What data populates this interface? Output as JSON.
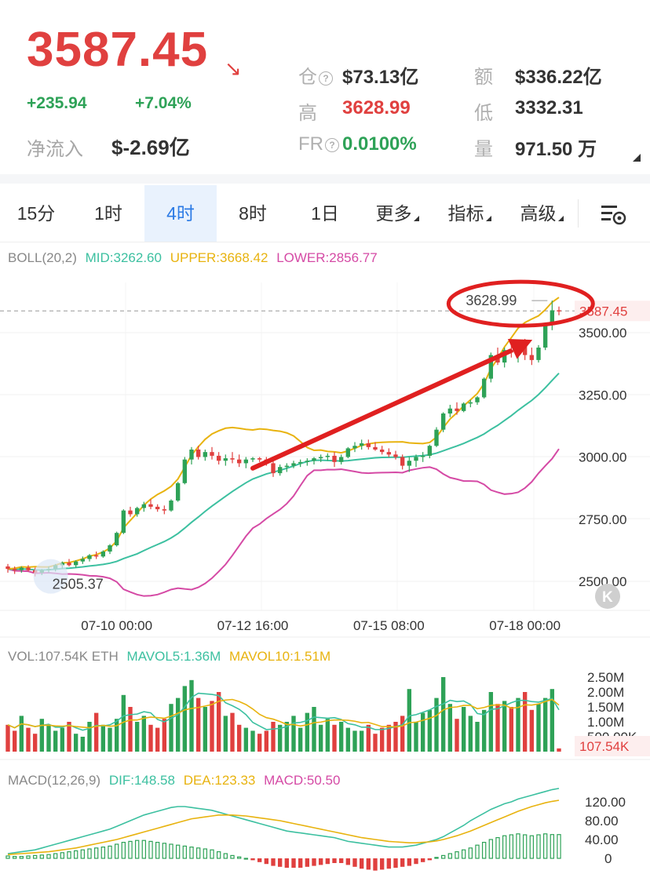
{
  "header": {
    "price": "3587.45",
    "change_abs": "+235.94",
    "change_pct": "+7.04%",
    "netflow_label": "净流入",
    "netflow_value": "$-2.69亿",
    "stats": [
      {
        "label": "仓",
        "value": "$73.13亿",
        "help": true,
        "color": "#333333"
      },
      {
        "label": "额",
        "value": "$336.22亿",
        "help": false,
        "color": "#333333"
      },
      {
        "label": "高",
        "value": "3628.99",
        "help": false,
        "color": "#e0403f"
      },
      {
        "label": "低",
        "value": "3332.31",
        "help": false,
        "color": "#333333"
      },
      {
        "label": "FR",
        "value": "0.0100%",
        "help": true,
        "color": "#2ea257"
      },
      {
        "label": "量",
        "value": "971.50 万",
        "help": false,
        "color": "#333333"
      }
    ]
  },
  "tabs": [
    {
      "label": "15分",
      "active": false,
      "dropdown": false
    },
    {
      "label": "1时",
      "active": false,
      "dropdown": false
    },
    {
      "label": "4时",
      "active": true,
      "dropdown": false
    },
    {
      "label": "8时",
      "active": false,
      "dropdown": false
    },
    {
      "label": "1日",
      "active": false,
      "dropdown": false
    },
    {
      "label": "更多",
      "active": false,
      "dropdown": true
    },
    {
      "label": "指标",
      "active": false,
      "dropdown": true
    },
    {
      "label": "高级",
      "active": false,
      "dropdown": true
    }
  ],
  "tab_settings_icon": "chart-settings-icon",
  "colors": {
    "up": "#2ea257",
    "down": "#e0403f",
    "mid": "#3cc0a0",
    "upper": "#e8b30f",
    "lower": "#d54aa5",
    "accent": "#2c7be5"
  },
  "main_chart": {
    "legend": {
      "name": "BOLL(20,2)",
      "mid": "MID:3262.60",
      "upper": "UPPER:3668.42",
      "lower": "LOWER:2856.77"
    },
    "high_marker": "3628.99",
    "low_marker": "2505.37",
    "last_price_tag": "3587.45",
    "y_ticks": [
      "3500.00",
      "3250.00",
      "3000.00",
      "2750.00",
      "2500.00"
    ],
    "x_ticks": [
      "07-10 00:00",
      "07-12 16:00",
      "07-15 08:00",
      "07-18 00:00"
    ]
  },
  "volume_chart": {
    "legend": {
      "name": "VOL:107.54K ETH",
      "ma5": "MAVOL5:1.36M",
      "ma10": "MAVOL10:1.51M"
    },
    "y_ticks": [
      "2.50M",
      "2.00M",
      "1.50M",
      "1.00M",
      "500.00K"
    ],
    "last_tag": "107.54K"
  },
  "macd_chart": {
    "legend": {
      "name": "MACD(12,26,9)",
      "dif": "DIF:148.58",
      "dea": "DEA:123.33",
      "macd": "MACD:50.50"
    },
    "y_ticks": [
      "120.00",
      "80.00",
      "40.00",
      "0"
    ]
  },
  "chart_data": {
    "type": "candlestick",
    "series": [
      {
        "name": "BOLL MID",
        "last": 3262.6
      },
      {
        "name": "BOLL UPPER",
        "last": 3668.42
      },
      {
        "name": "BOLL LOWER",
        "last": 2856.77
      }
    ],
    "candles_ohlc": [
      [
        2560,
        2570,
        2535,
        2550
      ],
      [
        2550,
        2560,
        2530,
        2545
      ],
      [
        2545,
        2560,
        2535,
        2555
      ],
      [
        2555,
        2565,
        2540,
        2545
      ],
      [
        2545,
        2555,
        2520,
        2535
      ],
      [
        2535,
        2550,
        2525,
        2545
      ],
      [
        2545,
        2560,
        2535,
        2550
      ],
      [
        2550,
        2570,
        2540,
        2565
      ],
      [
        2565,
        2580,
        2550,
        2575
      ],
      [
        2575,
        2590,
        2560,
        2565
      ],
      [
        2565,
        2585,
        2555,
        2580
      ],
      [
        2580,
        2600,
        2570,
        2590
      ],
      [
        2590,
        2610,
        2580,
        2605
      ],
      [
        2605,
        2620,
        2590,
        2600
      ],
      [
        2600,
        2625,
        2595,
        2620
      ],
      [
        2620,
        2650,
        2610,
        2645
      ],
      [
        2645,
        2700,
        2640,
        2695
      ],
      [
        2695,
        2790,
        2690,
        2785
      ],
      [
        2785,
        2800,
        2760,
        2770
      ],
      [
        2770,
        2800,
        2760,
        2795
      ],
      [
        2795,
        2820,
        2780,
        2810
      ],
      [
        2810,
        2830,
        2790,
        2800
      ],
      [
        2800,
        2810,
        2780,
        2790
      ],
      [
        2790,
        2805,
        2770,
        2785
      ],
      [
        2785,
        2830,
        2780,
        2825
      ],
      [
        2825,
        2900,
        2820,
        2895
      ],
      [
        2895,
        3000,
        2890,
        2990
      ],
      [
        2990,
        3040,
        2970,
        3030
      ],
      [
        3030,
        3045,
        2990,
        3000
      ],
      [
        3000,
        3030,
        2985,
        3020
      ],
      [
        3020,
        3040,
        2990,
        3005
      ],
      [
        3005,
        3020,
        2970,
        2985
      ],
      [
        2985,
        3010,
        2965,
        2995
      ],
      [
        2995,
        3020,
        2975,
        2990
      ],
      [
        2990,
        3010,
        2960,
        2975
      ],
      [
        2975,
        3000,
        2955,
        2990
      ],
      [
        2990,
        3000,
        2980,
        2995
      ],
      [
        2995,
        3000,
        2980,
        2990
      ],
      [
        2990,
        3000,
        2965,
        2975
      ],
      [
        2975,
        2990,
        2920,
        2935
      ],
      [
        2935,
        2970,
        2925,
        2960
      ],
      [
        2960,
        2975,
        2940,
        2965
      ],
      [
        2965,
        2985,
        2955,
        2975
      ],
      [
        2975,
        2990,
        2960,
        2980
      ],
      [
        2980,
        2995,
        2965,
        2985
      ],
      [
        2985,
        3000,
        2970,
        2995
      ],
      [
        2995,
        3010,
        2980,
        3000
      ],
      [
        3000,
        3015,
        2985,
        3005
      ],
      [
        3005,
        3020,
        2960,
        2980
      ],
      [
        2980,
        3010,
        2970,
        3000
      ],
      [
        3000,
        3040,
        2995,
        3035
      ],
      [
        3035,
        3060,
        3020,
        3045
      ],
      [
        3045,
        3070,
        3030,
        3055
      ],
      [
        3055,
        3070,
        3030,
        3040
      ],
      [
        3040,
        3060,
        3025,
        3030
      ],
      [
        3030,
        3045,
        3010,
        3020
      ],
      [
        3020,
        3035,
        3000,
        3010
      ],
      [
        3010,
        3025,
        2990,
        3000
      ],
      [
        3000,
        3010,
        2950,
        2965
      ],
      [
        2965,
        3000,
        2940,
        2985
      ],
      [
        2985,
        3010,
        2960,
        3000
      ],
      [
        3000,
        3020,
        2980,
        3005
      ],
      [
        3005,
        3050,
        2995,
        3045
      ],
      [
        3045,
        3120,
        3040,
        3110
      ],
      [
        3110,
        3180,
        3100,
        3175
      ],
      [
        3175,
        3210,
        3160,
        3195
      ],
      [
        3195,
        3220,
        3170,
        3185
      ],
      [
        3185,
        3220,
        3180,
        3215
      ],
      [
        3215,
        3230,
        3200,
        3220
      ],
      [
        3220,
        3245,
        3210,
        3240
      ],
      [
        3240,
        3320,
        3235,
        3315
      ],
      [
        3315,
        3420,
        3300,
        3410
      ],
      [
        3410,
        3440,
        3370,
        3380
      ],
      [
        3380,
        3440,
        3360,
        3430
      ],
      [
        3430,
        3460,
        3400,
        3420
      ],
      [
        3420,
        3470,
        3380,
        3455
      ],
      [
        3455,
        3475,
        3390,
        3410
      ],
      [
        3410,
        3440,
        3370,
        3390
      ],
      [
        3390,
        3450,
        3380,
        3440
      ],
      [
        3440,
        3540,
        3430,
        3530
      ],
      [
        3530,
        3629,
        3510,
        3590
      ],
      [
        3590,
        3605,
        3570,
        3587.45
      ]
    ],
    "volume_M": [
      0.9,
      0.7,
      1.2,
      0.8,
      0.6,
      1.1,
      0.9,
      0.7,
      0.8,
      1.0,
      0.6,
      0.5,
      1.0,
      1.3,
      0.9,
      0.8,
      1.1,
      1.9,
      1.5,
      1.0,
      1.2,
      0.9,
      0.8,
      1.1,
      1.6,
      1.8,
      2.2,
      2.4,
      1.8,
      1.5,
      1.7,
      2.0,
      1.2,
      1.3,
      0.9,
      0.8,
      0.7,
      0.6,
      0.7,
      1.0,
      0.9,
      1.0,
      1.2,
      0.8,
      1.3,
      1.5,
      0.9,
      1.1,
      0.9,
      1.0,
      0.8,
      0.7,
      0.7,
      0.9,
      0.6,
      0.8,
      0.9,
      1.0,
      1.2,
      2.1,
      1.0,
      1.3,
      1.4,
      1.8,
      2.5,
      1.6,
      1.1,
      1.5,
      1.2,
      1.0,
      1.4,
      2.0,
      1.6,
      1.7,
      1.5,
      1.8,
      2.0,
      1.4,
      1.6,
      1.8,
      2.1,
      0.1075
    ],
    "macd_hist": [
      5,
      4,
      4,
      5,
      6,
      7,
      8,
      10,
      12,
      14,
      16,
      18,
      20,
      22,
      24,
      26,
      30,
      34,
      36,
      38,
      38,
      36,
      34,
      32,
      30,
      28,
      26,
      24,
      22,
      20,
      18,
      14,
      10,
      6,
      3,
      0,
      -4,
      -8,
      -12,
      -16,
      -18,
      -20,
      -20,
      -20,
      -18,
      -16,
      -14,
      -12,
      -10,
      -10,
      -14,
      -18,
      -22,
      -24,
      -26,
      -24,
      -22,
      -20,
      -18,
      -16,
      -12,
      -8,
      -4,
      2,
      6,
      10,
      14,
      18,
      22,
      28,
      34,
      40,
      44,
      48,
      50,
      52,
      50,
      48,
      50,
      52,
      50.5,
      50.5
    ],
    "macd_dif": [
      10,
      12,
      14,
      16,
      18,
      22,
      26,
      30,
      34,
      38,
      42,
      46,
      50,
      54,
      58,
      62,
      68,
      74,
      80,
      86,
      92,
      96,
      100,
      104,
      108,
      110,
      110,
      108,
      106,
      104,
      102,
      98,
      94,
      90,
      86,
      82,
      78,
      74,
      70,
      66,
      62,
      58,
      56,
      54,
      52,
      50,
      48,
      46,
      44,
      40,
      36,
      34,
      32,
      30,
      28,
      26,
      24,
      24,
      24,
      26,
      28,
      32,
      36,
      40,
      46,
      54,
      62,
      70,
      80,
      88,
      96,
      104,
      110,
      116,
      120,
      126,
      130,
      134,
      138,
      142,
      146,
      148.58
    ],
    "macd_dea": [
      8,
      9,
      10,
      11,
      12,
      13,
      14,
      16,
      18,
      20,
      22,
      25,
      28,
      31,
      34,
      37,
      40,
      44,
      48,
      52,
      56,
      60,
      64,
      68,
      72,
      76,
      80,
      84,
      86,
      88,
      90,
      92,
      92,
      92,
      91,
      90,
      88,
      86,
      84,
      82,
      80,
      77,
      74,
      71,
      68,
      65,
      62,
      59,
      56,
      53,
      50,
      47,
      44,
      42,
      40,
      38,
      36,
      35,
      34,
      33,
      33,
      34,
      35,
      37,
      40,
      44,
      48,
      53,
      58,
      64,
      70,
      76,
      82,
      88,
      94,
      100,
      105,
      110,
      114,
      118,
      121,
      123.33
    ]
  }
}
